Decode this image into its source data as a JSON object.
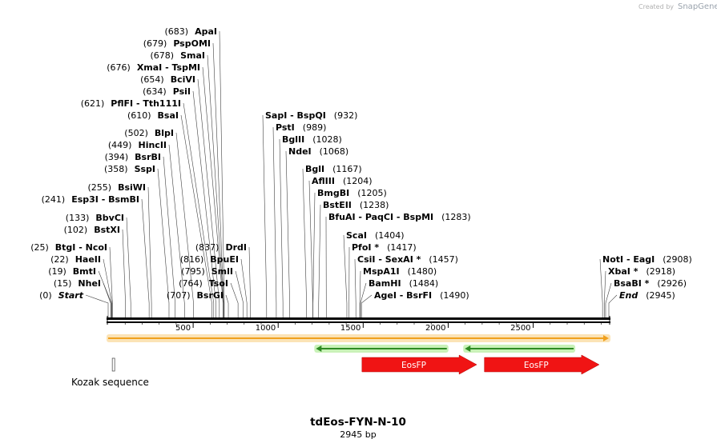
{
  "brand": {
    "created_by": "Created by",
    "name": "SnapGene"
  },
  "plasmid": {
    "name": "tdEos-FYN-N-10",
    "length_label": "2945 bp",
    "length": 2945
  },
  "ruler_ticks": [
    "500",
    "1000",
    "1500",
    "2000",
    "2500"
  ],
  "ruler_tick_values": [
    500,
    1000,
    1500,
    2000,
    2500
  ],
  "sites": [
    {
      "pos": 0,
      "text": "(0)",
      "name": "Start",
      "italic": true
    },
    {
      "pos": 15,
      "text": "(15)",
      "name": "NheI"
    },
    {
      "pos": 19,
      "text": "(19)",
      "name": "BmtI"
    },
    {
      "pos": 22,
      "text": "(22)",
      "name": "HaeII"
    },
    {
      "pos": 25,
      "text": "(25)",
      "name": "BtgI  -  NcoI"
    },
    {
      "pos": 102,
      "text": "(102)",
      "name": "BstXI"
    },
    {
      "pos": 133,
      "text": "(133)",
      "name": "BbvCI"
    },
    {
      "pos": 241,
      "text": "(241)",
      "name": "Esp3I  -  BsmBI"
    },
    {
      "pos": 255,
      "text": "(255)",
      "name": "BsiWI"
    },
    {
      "pos": 358,
      "text": "(358)",
      "name": "SspI"
    },
    {
      "pos": 394,
      "text": "(394)",
      "name": "BsrBI"
    },
    {
      "pos": 449,
      "text": "(449)",
      "name": "HincII"
    },
    {
      "pos": 502,
      "text": "(502)",
      "name": "BlpI"
    },
    {
      "pos": 610,
      "text": "(610)",
      "name": "BsaI"
    },
    {
      "pos": 621,
      "text": "(621)",
      "name": "PflFI  -  Tth111I"
    },
    {
      "pos": 634,
      "text": "(634)",
      "name": "PsiI"
    },
    {
      "pos": 654,
      "text": "(654)",
      "name": "BciVI"
    },
    {
      "pos": 676,
      "text": "(676)",
      "name": "XmaI  -  TspMI"
    },
    {
      "pos": 678,
      "text": "(678)",
      "name": "SmaI"
    },
    {
      "pos": 679,
      "text": "(679)",
      "name": "PspOMI"
    },
    {
      "pos": 683,
      "text": "(683)",
      "name": "ApaI"
    },
    {
      "pos": 707,
      "text": "(707)",
      "name": "BsrGI"
    },
    {
      "pos": 764,
      "text": "(764)",
      "name": "TsoI"
    },
    {
      "pos": 795,
      "text": "(795)",
      "name": "SmlI"
    },
    {
      "pos": 816,
      "text": "(816)",
      "name": "BpuEI"
    },
    {
      "pos": 837,
      "text": "(837)",
      "name": "DrdI"
    },
    {
      "pos": 932,
      "text": "(932)",
      "name": "SapI  -  BspQI"
    },
    {
      "pos": 989,
      "text": "(989)",
      "name": "PstI"
    },
    {
      "pos": 1028,
      "text": "(1028)",
      "name": "BglII"
    },
    {
      "pos": 1068,
      "text": "(1068)",
      "name": "NdeI"
    },
    {
      "pos": 1167,
      "text": "(1167)",
      "name": "BglI"
    },
    {
      "pos": 1204,
      "text": "(1204)",
      "name": "AflIII"
    },
    {
      "pos": 1205,
      "text": "(1205)",
      "name": "BmgBI"
    },
    {
      "pos": 1238,
      "text": "(1238)",
      "name": "BstEII"
    },
    {
      "pos": 1283,
      "text": "(1283)",
      "name": "BfuAI  -  PaqCI  -  BspMI"
    },
    {
      "pos": 1404,
      "text": "(1404)",
      "name": "ScaI"
    },
    {
      "pos": 1417,
      "text": "(1417)",
      "name": "PfoI *"
    },
    {
      "pos": 1457,
      "text": "(1457)",
      "name": "CsiI  -  SexAI *"
    },
    {
      "pos": 1480,
      "text": "(1480)",
      "name": "MspA1I"
    },
    {
      "pos": 1484,
      "text": "(1484)",
      "name": "BamHI"
    },
    {
      "pos": 1490,
      "text": "(1490)",
      "name": "AgeI  -  BsrFI"
    },
    {
      "pos": 2908,
      "text": "(2908)",
      "name": "NotI  -  EagI"
    },
    {
      "pos": 2918,
      "text": "(2918)",
      "name": "XbaI *"
    },
    {
      "pos": 2926,
      "text": "(2926)",
      "name": "BsaBI *"
    },
    {
      "pos": 2945,
      "text": "(2945)",
      "name": "End",
      "italic": true
    }
  ],
  "features": [
    {
      "name": "",
      "start": 0,
      "end": 2945,
      "strand": "fwd",
      "kind": "orf-orange",
      "color": "#f0a01e",
      "glow": "#fbe3b6"
    },
    {
      "name": "",
      "start": 1222,
      "end": 1992,
      "strand": "rev",
      "kind": "orf-green",
      "color": "#2e8b24",
      "glow": "#c9f2b8"
    },
    {
      "name": "",
      "start": 2098,
      "end": 2738,
      "strand": "rev",
      "kind": "orf-green",
      "color": "#2e8b24",
      "glow": "#c9f2b8"
    },
    {
      "name": "EosFP",
      "start": 1493,
      "end": 2168,
      "strand": "fwd",
      "kind": "cds-red",
      "color": "#f01414"
    },
    {
      "name": "EosFP",
      "start": 2213,
      "end": 2888,
      "strand": "fwd",
      "kind": "cds-red",
      "color": "#f01414"
    }
  ],
  "kozak": {
    "label": "Kozak sequence",
    "start": 15,
    "end": 26
  }
}
